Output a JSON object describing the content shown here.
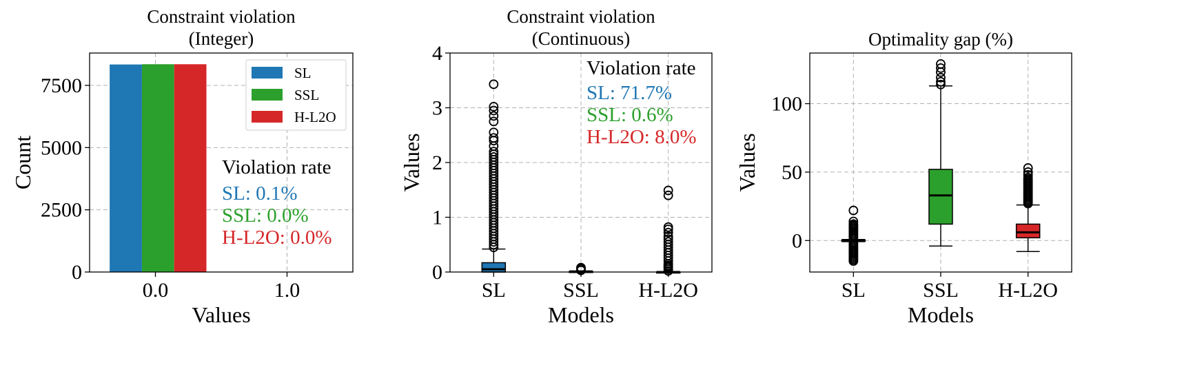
{
  "colors": {
    "SL": "#1f77b4",
    "SSL": "#2ca02c",
    "H-L2O": "#d62728"
  },
  "chart_data": [
    {
      "type": "bar",
      "title_lines": [
        "Constraint violation",
        "(Integer)"
      ],
      "xlabel": "Values",
      "ylabel": "Count",
      "xlim": [
        -0.5,
        1.5
      ],
      "ylim": [
        0,
        8800
      ],
      "xticks": [
        "0.0",
        "1.0"
      ],
      "yticks": [
        "0",
        "2500",
        "5000",
        "7500"
      ],
      "categories": [
        "0.0"
      ],
      "series": [
        {
          "name": "SL",
          "values": [
            8340
          ]
        },
        {
          "name": "SSL",
          "values": [
            8350
          ]
        },
        {
          "name": "H-L2O",
          "values": [
            8350
          ]
        }
      ],
      "legend": "top-right",
      "grid": true,
      "annotation": {
        "heading": "Violation rate",
        "lines": [
          "SL: 0.1%",
          "SSL: 0.0%",
          "H-L2O: 0.0%"
        ]
      }
    },
    {
      "type": "box",
      "title_lines": [
        "Constraint violation",
        "(Continuous)"
      ],
      "xlabel": "Models",
      "ylabel": "Values",
      "ylim": [
        0,
        4
      ],
      "yticks": [
        "0",
        "1",
        "2",
        "3",
        "4"
      ],
      "categories": [
        "SL",
        "SSL",
        "H-L2O"
      ],
      "grid": true,
      "boxes": [
        {
          "name": "SL",
          "q1": 0.0,
          "median": 0.05,
          "q3": 0.17,
          "whisker_low": 0.0,
          "whisker_high": 0.42,
          "fliers": [
            0.45,
            0.5,
            0.55,
            0.6,
            0.65,
            0.7,
            0.75,
            0.8,
            0.85,
            0.9,
            0.95,
            1.0,
            1.05,
            1.1,
            1.15,
            1.2,
            1.25,
            1.3,
            1.35,
            1.4,
            1.45,
            1.5,
            1.55,
            1.6,
            1.65,
            1.7,
            1.75,
            1.8,
            1.85,
            1.9,
            1.95,
            2.0,
            2.05,
            2.1,
            2.15,
            2.2,
            2.3,
            2.4,
            2.45,
            2.55,
            2.75,
            2.85,
            2.95,
            3.02,
            3.43
          ]
        },
        {
          "name": "SSL",
          "q1": 0.0,
          "median": 0.0,
          "q3": 0.01,
          "whisker_low": 0.0,
          "whisker_high": 0.02,
          "fliers": [
            0.03,
            0.05,
            0.07,
            0.08
          ]
        },
        {
          "name": "H-L2O",
          "q1": 0.0,
          "median": 0.0,
          "q3": 0.0,
          "whisker_low": 0.0,
          "whisker_high": 0.01,
          "fliers": [
            0.02,
            0.05,
            0.08,
            0.1,
            0.12,
            0.15,
            0.2,
            0.25,
            0.3,
            0.35,
            0.4,
            0.45,
            0.5,
            0.55,
            0.6,
            0.65,
            0.72,
            0.78,
            0.82,
            1.4,
            1.49
          ]
        }
      ],
      "annotation": {
        "heading": "Violation rate",
        "lines": [
          "SL: 71.7%",
          "SSL: 0.6%",
          "H-L2O: 8.0%"
        ]
      }
    },
    {
      "type": "box",
      "title_lines": [
        "Optimality gap (%)"
      ],
      "xlabel": "Models",
      "ylabel": "Values",
      "ylim": [
        -23,
        137
      ],
      "yticks": [
        "0",
        "50",
        "100"
      ],
      "categories": [
        "SL",
        "SSL",
        "H-L2O"
      ],
      "grid": true,
      "boxes": [
        {
          "name": "SL",
          "q1": -0.3,
          "median": 0.0,
          "q3": 0.3,
          "whisker_low": -0.8,
          "whisker_high": 0.8,
          "fliers": [
            -15,
            -14,
            -13,
            -12,
            -11,
            -10,
            -9,
            -8,
            -7,
            -6,
            -5,
            -4,
            -3,
            -2,
            2,
            3,
            4,
            5,
            6,
            7,
            8,
            9,
            10,
            11,
            12,
            14,
            22
          ]
        },
        {
          "name": "SSL",
          "q1": 12,
          "median": 33,
          "q3": 52,
          "whisker_low": -4,
          "whisker_high": 113,
          "fliers": [
            114,
            116,
            119,
            123,
            126,
            129
          ]
        },
        {
          "name": "H-L2O",
          "q1": 2,
          "median": 6,
          "q3": 12,
          "whisker_low": -8,
          "whisker_high": 26,
          "fliers": [
            27,
            28,
            29,
            30,
            31,
            32,
            33,
            34,
            35,
            36,
            37,
            38,
            39,
            40,
            41,
            42,
            43,
            44,
            45,
            46,
            48,
            50,
            53
          ]
        }
      ]
    }
  ]
}
